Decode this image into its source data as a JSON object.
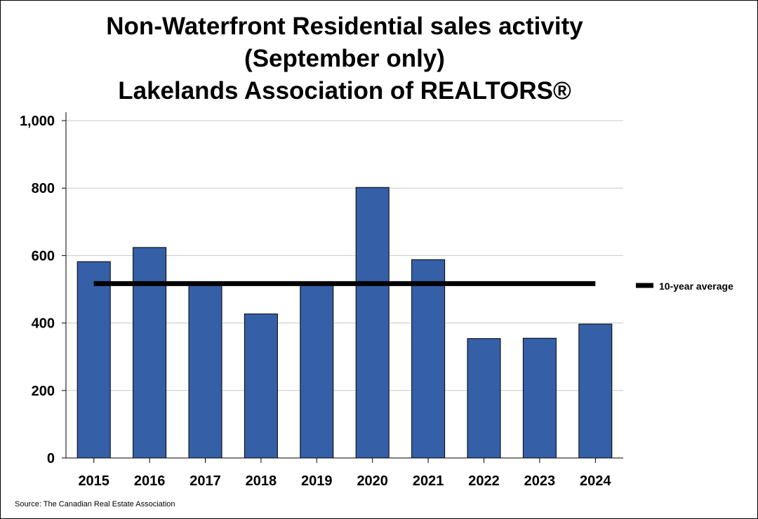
{
  "chart_data": {
    "type": "bar",
    "title": [
      "Non-Waterfront Residential sales activity",
      "(September only)",
      "Lakelands Association of REALTORS®"
    ],
    "categories": [
      "2015",
      "2016",
      "2017",
      "2018",
      "2019",
      "2020",
      "2021",
      "2022",
      "2023",
      "2024"
    ],
    "series": [
      {
        "values": [
          582,
          624,
          516,
          427,
          522,
          802,
          588,
          354,
          355,
          397
        ],
        "color": "#3560a8"
      }
    ],
    "reference_line": {
      "name": "10-year average",
      "value": 517,
      "color": "#000000"
    },
    "ylim": [
      0,
      1000
    ],
    "yticks": [
      0,
      200,
      400,
      600,
      800,
      1000
    ],
    "ytick_labels": [
      "0",
      "200",
      "400",
      "600",
      "800",
      "1,000"
    ],
    "xlabel": "",
    "ylabel": "",
    "grid": true,
    "legend_position": "right"
  },
  "source": "Source: The Canadian Real Estate Association"
}
